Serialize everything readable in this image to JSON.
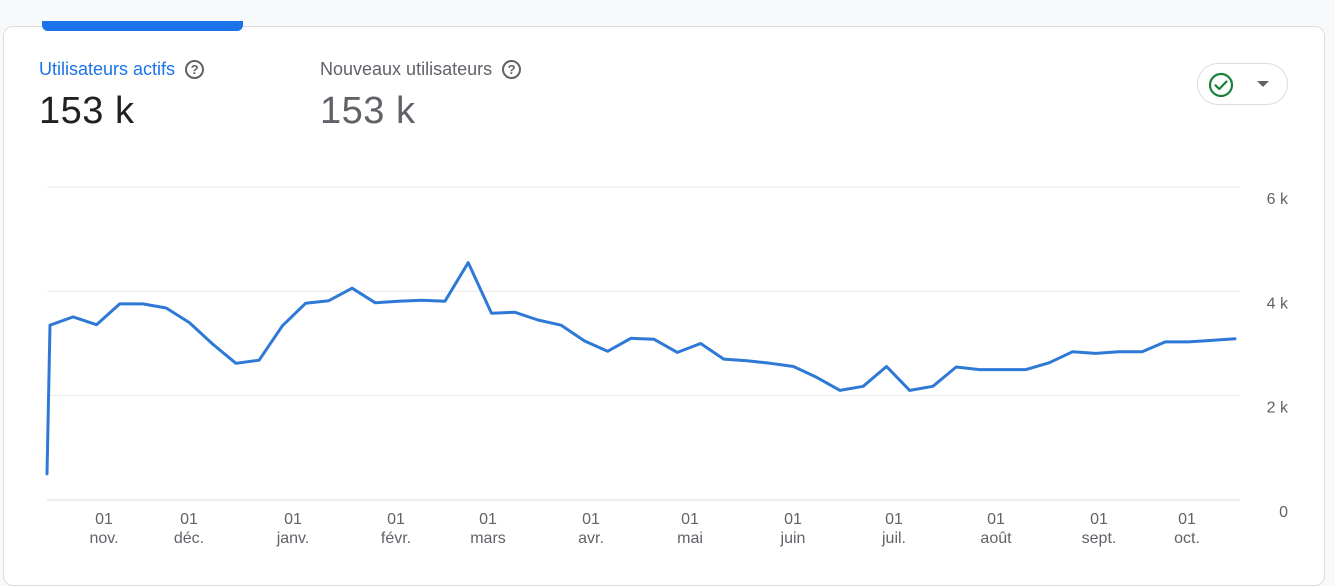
{
  "metrics": [
    {
      "label": "Utilisateurs actifs",
      "value": "153 k",
      "selected": true
    },
    {
      "label": "Nouveaux utilisateurs",
      "value": "153 k",
      "selected": false
    }
  ],
  "help_icon": "question-circle-icon",
  "compare_button": {
    "icon": "check-circle-icon",
    "caret": "chevron-down-icon",
    "accent": "#188038"
  },
  "colors": {
    "accent": "#1a73e8",
    "line": "#2f79d6",
    "grid": "#e8eaed"
  },
  "chart_data": {
    "type": "line",
    "y_axis": {
      "ticks": [
        "6 k",
        "4 k",
        "2 k",
        "0"
      ],
      "range": [
        0,
        6000
      ],
      "position": "right"
    },
    "x_axis": {
      "ticks": [
        {
          "day": "01",
          "month": "nov."
        },
        {
          "day": "01",
          "month": "déc."
        },
        {
          "day": "01",
          "month": "janv."
        },
        {
          "day": "01",
          "month": "févr."
        },
        {
          "day": "01",
          "month": "mars"
        },
        {
          "day": "01",
          "month": "avr."
        },
        {
          "day": "01",
          "month": "mai"
        },
        {
          "day": "01",
          "month": "juin"
        },
        {
          "day": "01",
          "month": "juil."
        },
        {
          "day": "01",
          "month": "août"
        },
        {
          "day": "01",
          "month": "sept."
        },
        {
          "day": "01",
          "month": "oct."
        }
      ]
    },
    "grid": true,
    "series": [
      {
        "values": [
          500,
          3350,
          3510,
          3360,
          3760,
          3760,
          3680,
          3400,
          2990,
          2620,
          2680,
          3340,
          3770,
          3820,
          4060,
          3780,
          3810,
          3830,
          3810,
          4550,
          3580,
          3600,
          3450,
          3350,
          3050,
          2850,
          3100,
          3080,
          2830,
          3000,
          2700,
          2670,
          2620,
          2560,
          2350,
          2100,
          2180,
          2560,
          2100,
          2180,
          2550,
          2500,
          2500,
          2500,
          2630,
          2840,
          2810,
          2840,
          2840,
          3030,
          3030,
          3060,
          3090
        ]
      }
    ]
  }
}
